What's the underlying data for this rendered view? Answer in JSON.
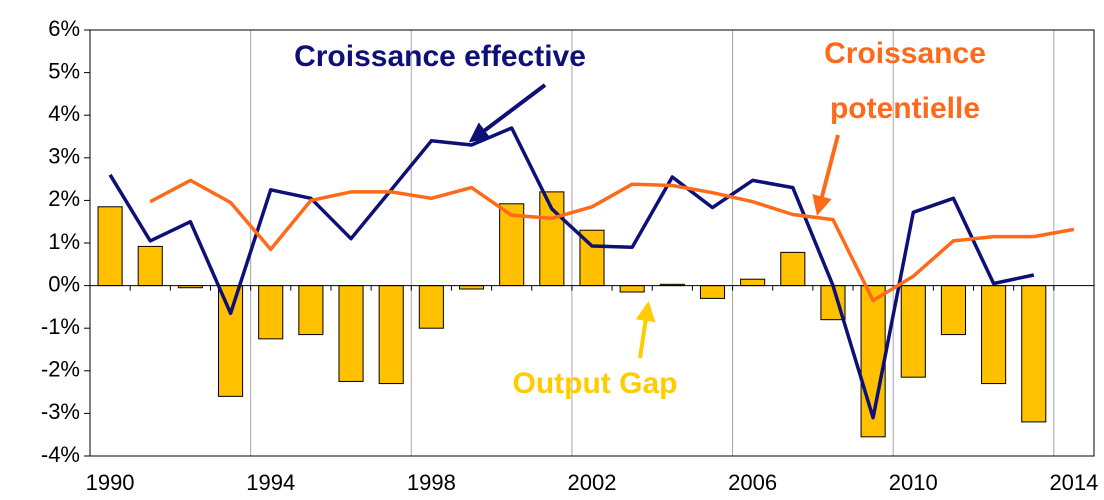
{
  "chart_data": {
    "type": "combo",
    "categories": [
      "1990",
      null,
      null,
      null,
      "1994",
      null,
      null,
      null,
      "1998",
      null,
      null,
      null,
      "2002",
      null,
      null,
      null,
      "2006",
      null,
      null,
      null,
      "2010",
      null,
      null,
      null,
      "2014"
    ],
    "series": [
      {
        "name": "Output Gap",
        "type": "bar",
        "color": "#ffc000",
        "values": [
          1.85,
          0.92,
          -0.05,
          -2.6,
          -1.25,
          -1.15,
          -2.25,
          -2.3,
          -1.0,
          -0.08,
          1.92,
          2.2,
          1.3,
          -0.15,
          0.03,
          -0.3,
          0.15,
          0.78,
          -0.8,
          -3.55,
          -2.15,
          -1.15,
          -2.3,
          -3.2,
          null
        ]
      },
      {
        "name": "Croissance effective",
        "type": "line",
        "color": "#0f0f78",
        "values": [
          2.6,
          1.05,
          1.5,
          -0.65,
          2.25,
          2.05,
          1.1,
          2.25,
          3.4,
          3.3,
          3.7,
          1.8,
          0.93,
          0.9,
          2.55,
          1.83,
          2.47,
          2.3,
          0.0,
          -3.1,
          1.72,
          2.05,
          0.05,
          0.25,
          null
        ]
      },
      {
        "name": "Croissance potentielle",
        "type": "line",
        "color": "#ff6a1a",
        "values": [
          null,
          1.97,
          2.47,
          1.95,
          0.85,
          2.0,
          2.2,
          2.2,
          2.05,
          2.3,
          1.65,
          1.58,
          1.85,
          2.38,
          2.35,
          2.18,
          1.97,
          1.67,
          1.55,
          -0.35,
          0.22,
          1.05,
          1.15,
          1.15,
          1.32
        ]
      }
    ],
    "annotations": [
      {
        "lines": [
          "Croissance effective"
        ],
        "color": "#0f0f78"
      },
      {
        "lines": [
          "Croissance",
          "potentielle"
        ],
        "color": "#ff6a1a"
      },
      {
        "lines": [
          "Output Gap"
        ],
        "color": "#ffcc00"
      }
    ],
    "ylim": [
      -4,
      6
    ],
    "yticks": [
      {
        "value": -4,
        "label": "-4%"
      },
      {
        "value": -3,
        "label": "-3%"
      },
      {
        "value": -2,
        "label": "-2%"
      },
      {
        "value": -1,
        "label": "-1%"
      },
      {
        "value": 0,
        "label": "0%"
      },
      {
        "value": 1,
        "label": "1%"
      },
      {
        "value": 2,
        "label": "2%"
      },
      {
        "value": 3,
        "label": "3%"
      },
      {
        "value": 4,
        "label": "4%"
      },
      {
        "value": 5,
        "label": "5%"
      },
      {
        "value": 6,
        "label": "6%"
      }
    ],
    "grid": true
  }
}
